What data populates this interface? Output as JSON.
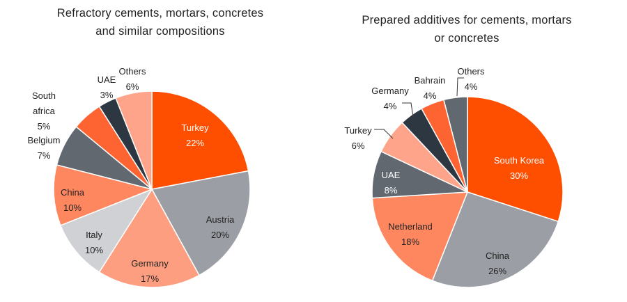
{
  "chart_data": [
    {
      "type": "pie",
      "title": "Refractory cements, mortars, concretes and similar compositions",
      "title_lines": [
        "Refractory cements, mortars, concretes",
        "and similar compositions"
      ],
      "slices": [
        {
          "label": "Turkey",
          "value": 22,
          "value_label": "22%",
          "color": "#fe4f00"
        },
        {
          "label": "Austria",
          "value": 20,
          "value_label": "20%",
          "color": "#9b9ea4"
        },
        {
          "label": "Germany",
          "value": 17,
          "value_label": "17%",
          "color": "#fd9e80"
        },
        {
          "label": "Italy",
          "value": 10,
          "value_label": "10%",
          "color": "#cfd1d4"
        },
        {
          "label": "China",
          "value": 10,
          "value_label": "10%",
          "color": "#ff875f"
        },
        {
          "label": "Belgium",
          "value": 7,
          "value_label": "7%",
          "color": "#616870"
        },
        {
          "label": "South africa",
          "value": 5,
          "value_label": "5%",
          "color": "#fe6332"
        },
        {
          "label": "UAE",
          "value": 3,
          "value_label": "3%",
          "color": "#2d3741"
        },
        {
          "label": "Others",
          "value": 6,
          "value_label": "6%",
          "color": "#fea48a"
        }
      ]
    },
    {
      "type": "pie",
      "title": "Prepared additives for cements, mortars or concretes",
      "title_lines": [
        "Prepared additives for cements, mortars",
        "or concretes"
      ],
      "slices": [
        {
          "label": "South Korea",
          "value": 30,
          "value_label": "30%",
          "color": "#fe4f00"
        },
        {
          "label": "China",
          "value": 26,
          "value_label": "26%",
          "color": "#9b9ea4"
        },
        {
          "label": "Netherland",
          "value": 18,
          "value_label": "18%",
          "color": "#ff875f"
        },
        {
          "label": "UAE",
          "value": 8,
          "value_label": "8%",
          "color": "#616870"
        },
        {
          "label": "Turkey",
          "value": 6,
          "value_label": "6%",
          "color": "#fea48a"
        },
        {
          "label": "Germany",
          "value": 4,
          "value_label": "4%",
          "color": "#2d3741"
        },
        {
          "label": "Bahrain",
          "value": 4,
          "value_label": "4%",
          "color": "#fe6332"
        },
        {
          "label": "Others",
          "value": 4,
          "value_label": "4%",
          "color": "#616870"
        }
      ]
    }
  ]
}
